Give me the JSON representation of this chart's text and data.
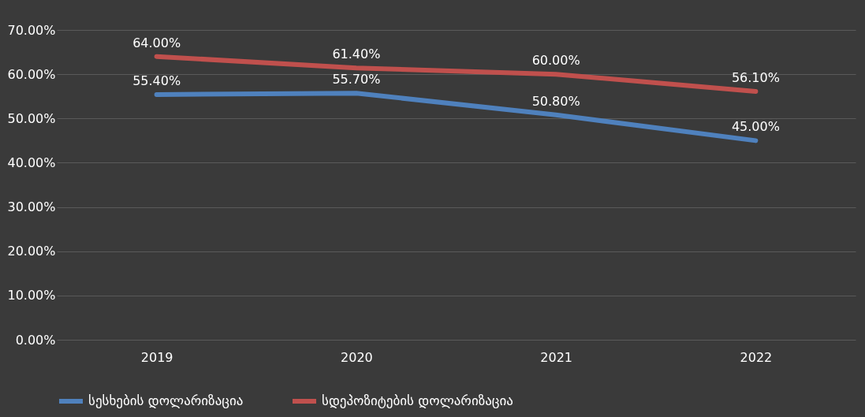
{
  "chart_data": {
    "type": "line",
    "categories": [
      "2019",
      "2020",
      "2021",
      "2022"
    ],
    "series": [
      {
        "name": "სესხების დოლარიზაცია",
        "color": "#4f81bd",
        "values": [
          55.4,
          55.7,
          50.8,
          45.0
        ],
        "value_labels": [
          "55.40%",
          "55.70%",
          "50.80%",
          "45.00%"
        ]
      },
      {
        "name": "სდეპოზიტების დოლარიზაცია",
        "color": "#c0504d",
        "values": [
          64.0,
          61.4,
          60.0,
          56.1
        ],
        "value_labels": [
          "64.00%",
          "61.40%",
          "60.00%",
          "56.10%"
        ]
      }
    ],
    "ylim": [
      0,
      70
    ],
    "yticks": [
      {
        "value": 0,
        "label": "0.00%"
      },
      {
        "value": 10,
        "label": "10.00%"
      },
      {
        "value": 20,
        "label": "20.00%"
      },
      {
        "value": 30,
        "label": "30.00%"
      },
      {
        "value": 40,
        "label": "40.00%"
      },
      {
        "value": 50,
        "label": "50.00%"
      },
      {
        "value": 60,
        "label": "60.00%"
      },
      {
        "value": 70,
        "label": "70.00%"
      }
    ],
    "grid": "y",
    "legend": "bottom",
    "marker": "none",
    "line_style": "solid"
  }
}
